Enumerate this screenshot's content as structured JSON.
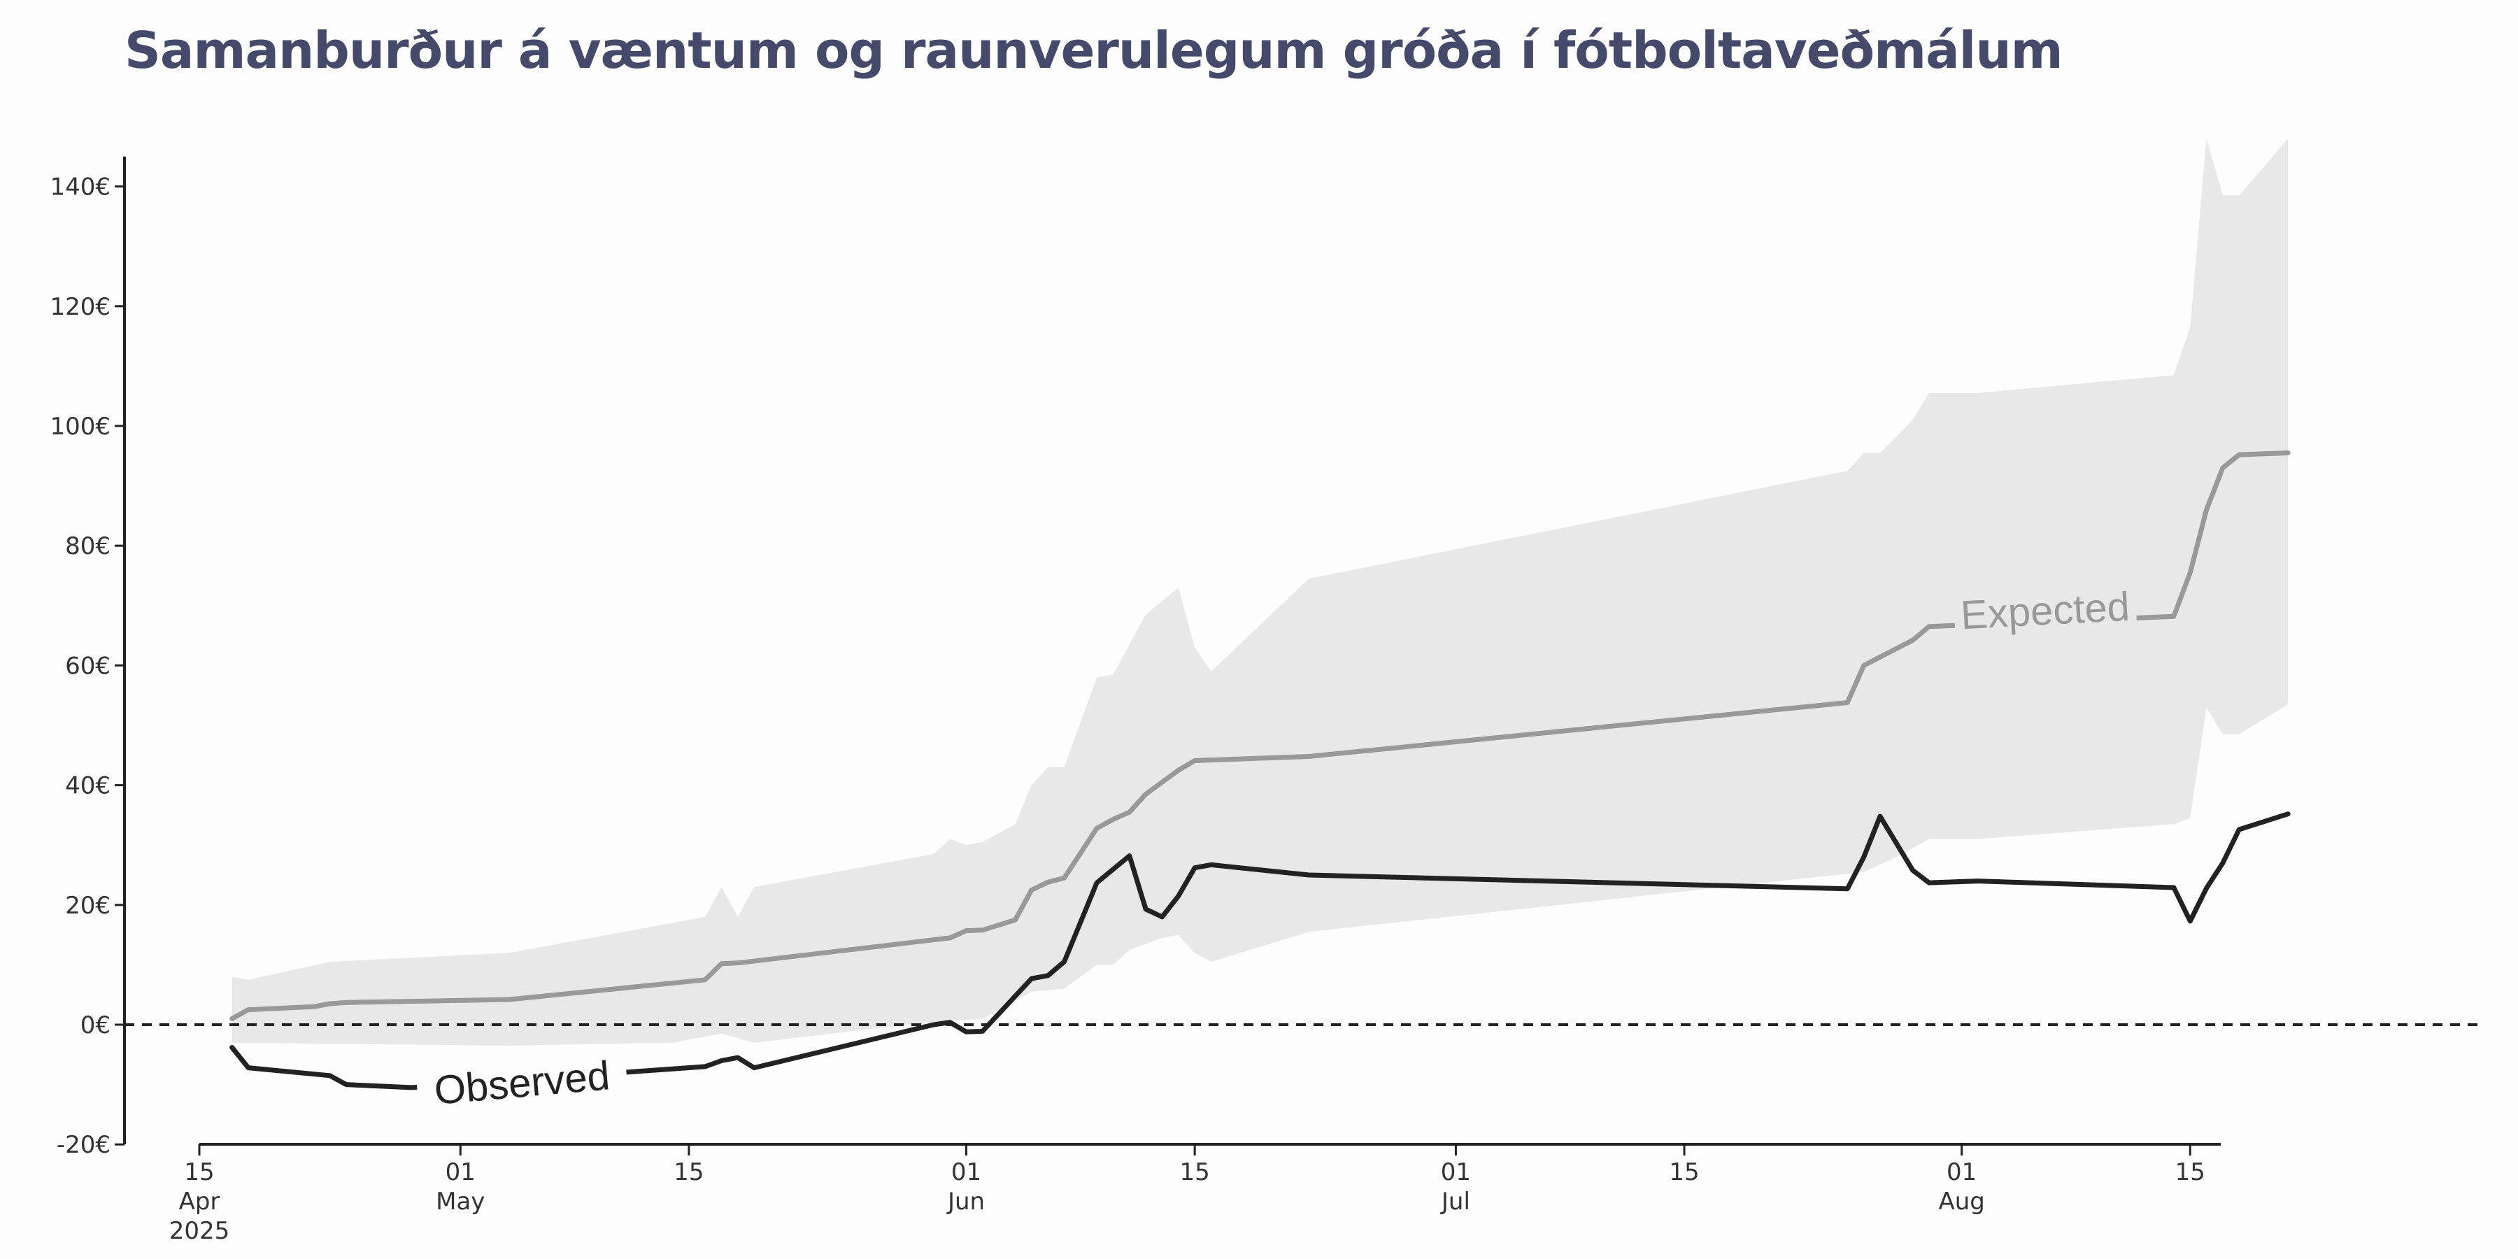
{
  "chart_data": {
    "type": "line",
    "title": "Samanburður á væntum og raunverulegum gróða í fótboltaveðmálum",
    "xlabel": "",
    "ylabel": "",
    "x_range": [
      "2025-04-15",
      "2025-08-22"
    ],
    "ylim": [
      -20,
      145
    ],
    "y_ticks": [
      {
        "value": -20,
        "label": "-20€"
      },
      {
        "value": 0,
        "label": "0€"
      },
      {
        "value": 20,
        "label": "20€"
      },
      {
        "value": 40,
        "label": "40€"
      },
      {
        "value": 60,
        "label": "60€"
      },
      {
        "value": 80,
        "label": "80€"
      },
      {
        "value": 100,
        "label": "100€"
      },
      {
        "value": 120,
        "label": "120€"
      },
      {
        "value": 140,
        "label": "140€"
      }
    ],
    "x_ticks": [
      {
        "date": "2025-04-15",
        "lines": [
          "15",
          "Apr",
          "2025"
        ]
      },
      {
        "date": "2025-05-01",
        "lines": [
          "01",
          "May"
        ]
      },
      {
        "date": "2025-05-15",
        "lines": [
          "15"
        ]
      },
      {
        "date": "2025-06-01",
        "lines": [
          "01",
          "Jun"
        ]
      },
      {
        "date": "2025-06-15",
        "lines": [
          "15"
        ]
      },
      {
        "date": "2025-07-01",
        "lines": [
          "01",
          "Jul"
        ]
      },
      {
        "date": "2025-07-15",
        "lines": [
          "15"
        ]
      },
      {
        "date": "2025-08-01",
        "lines": [
          "01",
          "Aug"
        ]
      },
      {
        "date": "2025-08-15",
        "lines": [
          "15"
        ]
      }
    ],
    "reference_line": {
      "y": 0,
      "style": "dashed"
    },
    "band": {
      "upper": [
        [
          "2025-04-17",
          8
        ],
        [
          "2025-04-18",
          7.5
        ],
        [
          "2025-04-23",
          10.5
        ],
        [
          "2025-05-04",
          12
        ],
        [
          "2025-05-16",
          18
        ],
        [
          "2025-05-17",
          23
        ],
        [
          "2025-05-18",
          18
        ],
        [
          "2025-05-19",
          23
        ],
        [
          "2025-05-30",
          28.5
        ],
        [
          "2025-05-31",
          31
        ],
        [
          "2025-06-01",
          30
        ],
        [
          "2025-06-02",
          30.5
        ],
        [
          "2025-06-04",
          33.5
        ],
        [
          "2025-06-05",
          40
        ],
        [
          "2025-06-06",
          43
        ],
        [
          "2025-06-07",
          43
        ],
        [
          "2025-06-09",
          58
        ],
        [
          "2025-06-10",
          58.5
        ],
        [
          "2025-06-12",
          68.5
        ],
        [
          "2025-06-14",
          73
        ],
        [
          "2025-06-15",
          63
        ],
        [
          "2025-06-16",
          59
        ],
        [
          "2025-06-22",
          74.5
        ],
        [
          "2025-07-25",
          92.5
        ],
        [
          "2025-07-26",
          95.5
        ],
        [
          "2025-07-27",
          95.5
        ],
        [
          "2025-07-29",
          101
        ],
        [
          "2025-07-30",
          105.5
        ],
        [
          "2025-08-02",
          105.5
        ],
        [
          "2025-08-14",
          108.5
        ],
        [
          "2025-08-15",
          116.5
        ],
        [
          "2025-08-16",
          148
        ],
        [
          "2025-08-17",
          138.5
        ],
        [
          "2025-08-18",
          138.5
        ],
        [
          "2025-08-21",
          148
        ]
      ],
      "lower": [
        [
          "2025-04-17",
          -3
        ],
        [
          "2025-05-04",
          -3.5
        ],
        [
          "2025-05-14",
          -3
        ],
        [
          "2025-05-17",
          -1.5
        ],
        [
          "2025-05-19",
          -3
        ],
        [
          "2025-05-30",
          0.5
        ],
        [
          "2025-06-02",
          1
        ],
        [
          "2025-06-04",
          4
        ],
        [
          "2025-06-05",
          5.5
        ],
        [
          "2025-06-07",
          6
        ],
        [
          "2025-06-09",
          10
        ],
        [
          "2025-06-10",
          10
        ],
        [
          "2025-06-11",
          12.5
        ],
        [
          "2025-06-13",
          14.5
        ],
        [
          "2025-06-14",
          15
        ],
        [
          "2025-06-15",
          12
        ],
        [
          "2025-06-16",
          10.5
        ],
        [
          "2025-06-22",
          15.5
        ],
        [
          "2025-07-26",
          25.5
        ],
        [
          "2025-07-28",
          28
        ],
        [
          "2025-07-30",
          31
        ],
        [
          "2025-08-02",
          31
        ],
        [
          "2025-08-14",
          33.5
        ],
        [
          "2025-08-15",
          34.5
        ],
        [
          "2025-08-16",
          53
        ],
        [
          "2025-08-17",
          48.5
        ],
        [
          "2025-08-18",
          48.5
        ],
        [
          "2025-08-21",
          53.5
        ]
      ]
    },
    "series": [
      {
        "name": "Expected",
        "color": "#999999",
        "points": [
          [
            "2025-04-17",
            1
          ],
          [
            "2025-04-18",
            2.5
          ],
          [
            "2025-04-22",
            3
          ],
          [
            "2025-04-23",
            3.5
          ],
          [
            "2025-04-24",
            3.7
          ],
          [
            "2025-05-04",
            4.2
          ],
          [
            "2025-05-16",
            7.5
          ],
          [
            "2025-05-17",
            10.2
          ],
          [
            "2025-05-18",
            10.3
          ],
          [
            "2025-05-31",
            14.5
          ],
          [
            "2025-06-01",
            15.7
          ],
          [
            "2025-06-02",
            15.8
          ],
          [
            "2025-06-04",
            17.5
          ],
          [
            "2025-06-05",
            22.5
          ],
          [
            "2025-06-06",
            23.8
          ],
          [
            "2025-06-07",
            24.5
          ],
          [
            "2025-06-09",
            32.8
          ],
          [
            "2025-06-10",
            34.3
          ],
          [
            "2025-06-11",
            35.5
          ],
          [
            "2025-06-12",
            38.5
          ],
          [
            "2025-06-14",
            42.5
          ],
          [
            "2025-06-15",
            44.1
          ],
          [
            "2025-06-22",
            44.8
          ],
          [
            "2025-07-25",
            53.8
          ],
          [
            "2025-07-26",
            60
          ],
          [
            "2025-07-29",
            64.2
          ],
          [
            "2025-07-30",
            66.5
          ],
          [
            "2025-08-14",
            68.2
          ],
          [
            "2025-08-15",
            75.5
          ],
          [
            "2025-08-16",
            86
          ],
          [
            "2025-08-17",
            93
          ],
          [
            "2025-08-18",
            95.2
          ],
          [
            "2025-08-21",
            95.5
          ]
        ]
      },
      {
        "name": "Observed",
        "color": "#222222",
        "points": [
          [
            "2025-04-17",
            -3.8
          ],
          [
            "2025-04-18",
            -7.2
          ],
          [
            "2025-04-23",
            -8.5
          ],
          [
            "2025-04-24",
            -10
          ],
          [
            "2025-04-28",
            -10.5
          ],
          [
            "2025-05-16",
            -7
          ],
          [
            "2025-05-17",
            -6
          ],
          [
            "2025-05-18",
            -5.5
          ],
          [
            "2025-05-19",
            -7.2
          ],
          [
            "2025-05-30",
            0
          ],
          [
            "2025-05-31",
            0.4
          ],
          [
            "2025-06-01",
            -1.2
          ],
          [
            "2025-06-02",
            -1.1
          ],
          [
            "2025-06-05",
            7.7
          ],
          [
            "2025-06-06",
            8.2
          ],
          [
            "2025-06-07",
            10.5
          ],
          [
            "2025-06-09",
            23.7
          ],
          [
            "2025-06-11",
            28.2
          ],
          [
            "2025-06-12",
            19.3
          ],
          [
            "2025-06-13",
            18
          ],
          [
            "2025-06-14",
            21.5
          ],
          [
            "2025-06-15",
            26.2
          ],
          [
            "2025-06-16",
            26.7
          ],
          [
            "2025-06-22",
            25
          ],
          [
            "2025-07-25",
            22.7
          ],
          [
            "2025-07-26",
            28
          ],
          [
            "2025-07-27",
            34.8
          ],
          [
            "2025-07-29",
            25.8
          ],
          [
            "2025-07-30",
            23.7
          ],
          [
            "2025-08-02",
            24
          ],
          [
            "2025-08-14",
            22.9
          ],
          [
            "2025-08-15",
            17.3
          ],
          [
            "2025-08-16",
            22.8
          ],
          [
            "2025-08-17",
            27
          ],
          [
            "2025-08-18",
            32.6
          ],
          [
            "2025-08-21",
            35.2
          ]
        ]
      }
    ]
  }
}
